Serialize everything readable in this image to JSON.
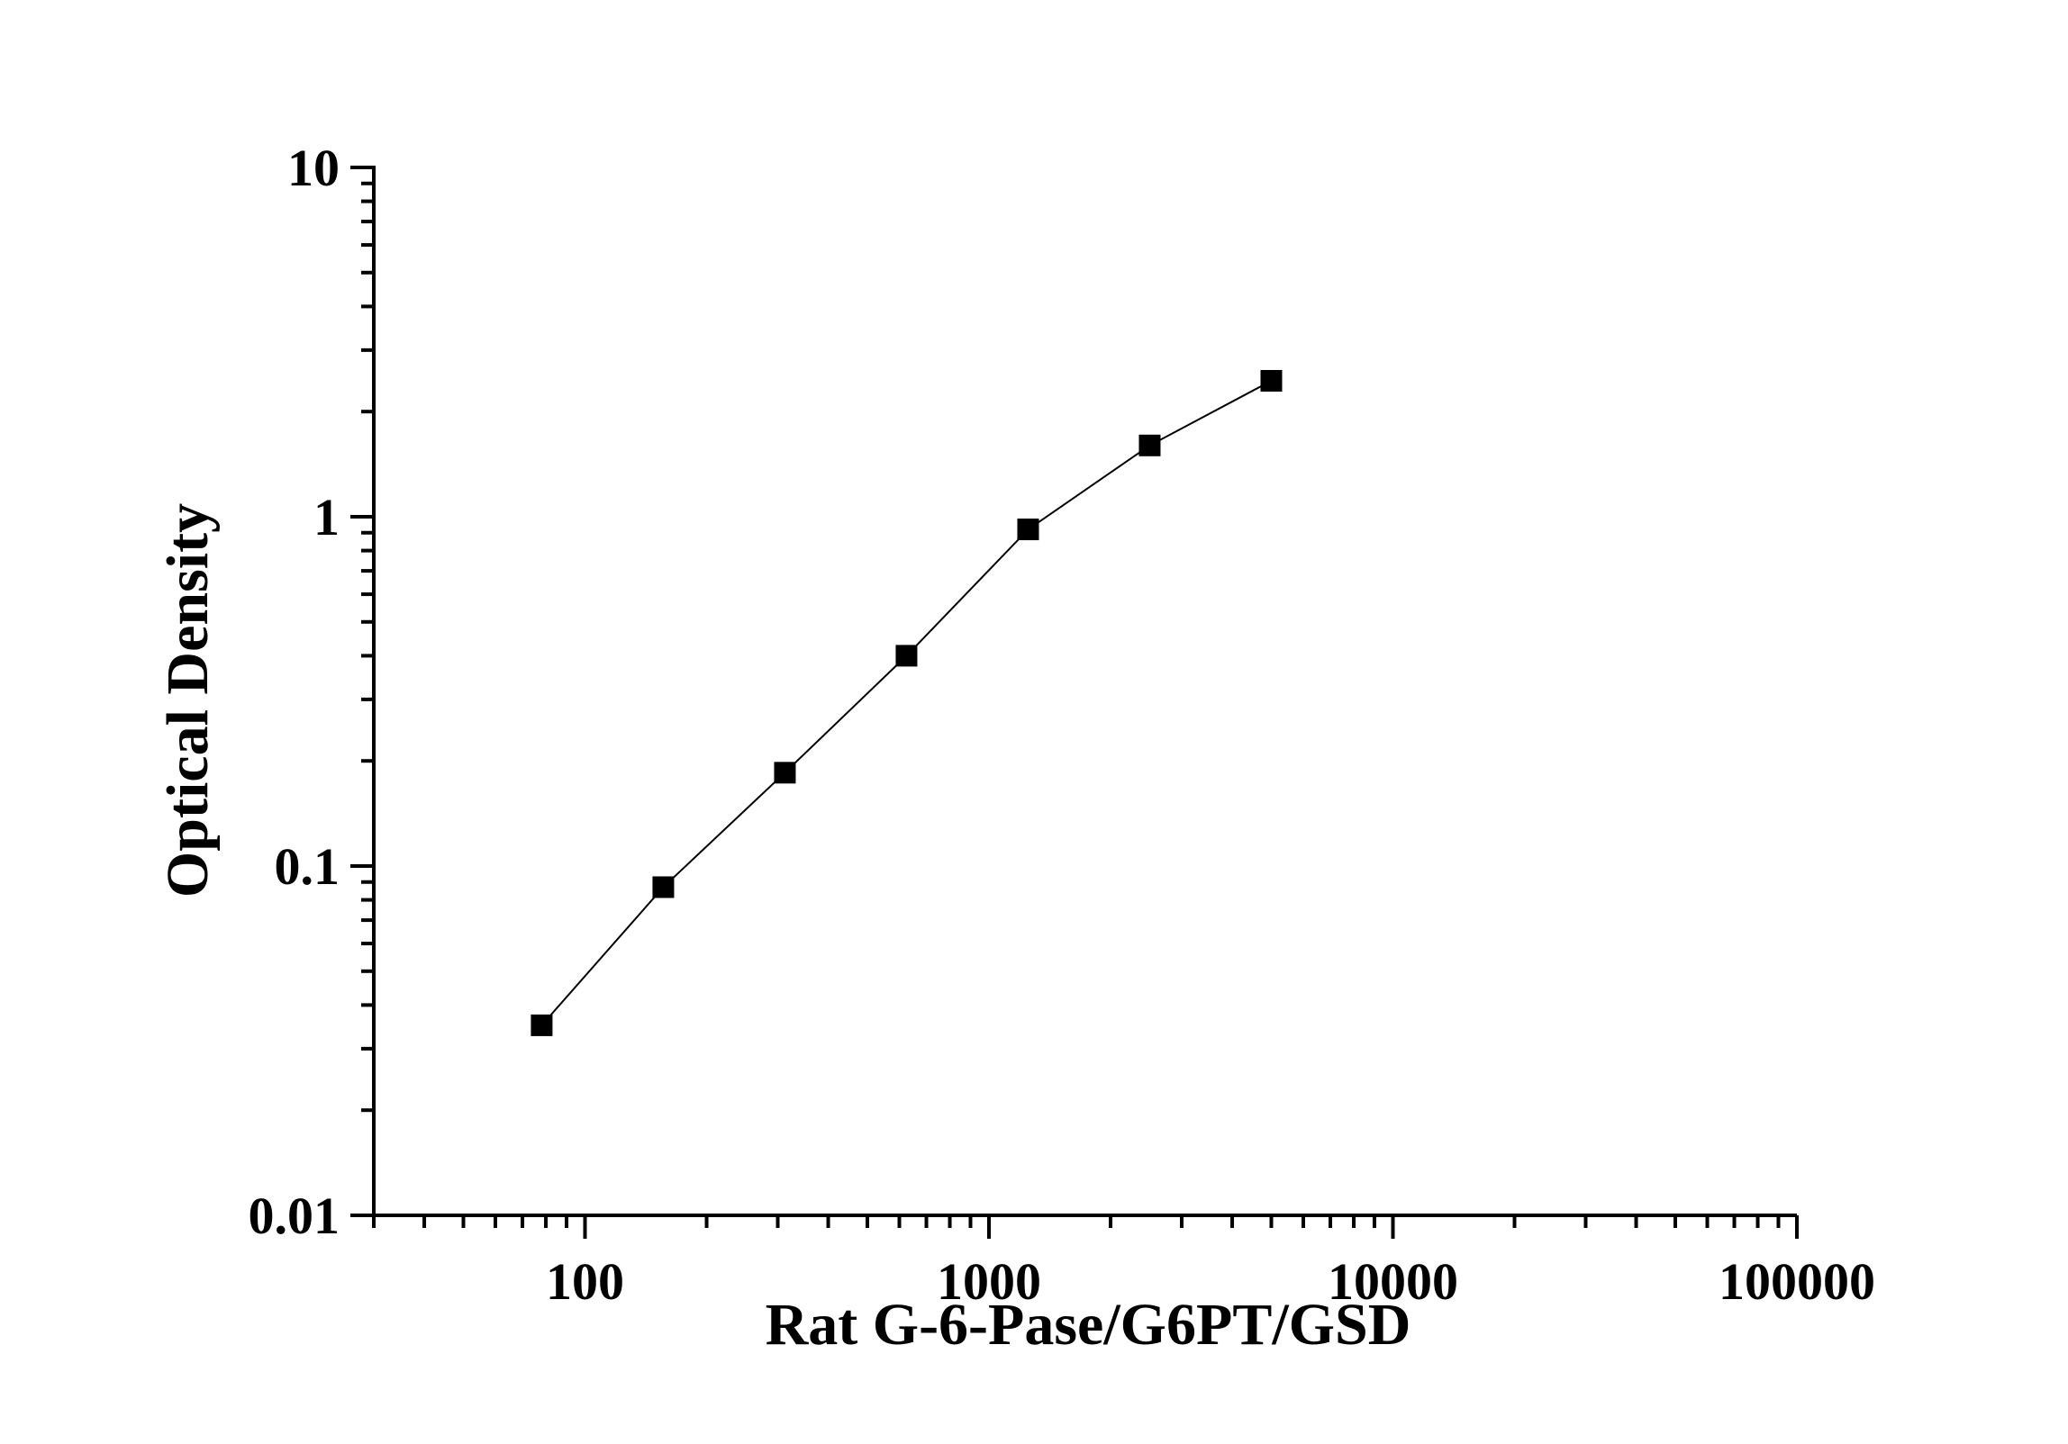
{
  "chart_data": {
    "type": "line",
    "title": "",
    "xlabel": "Rat G-6-Pase/G6PT/GSD",
    "ylabel": "Optical Density",
    "xscale": "log",
    "yscale": "log",
    "xlim": [
      30,
      100000
    ],
    "ylim": [
      0.01,
      10
    ],
    "grid": false,
    "legend": "none",
    "x_ticks": [
      "100",
      "1000",
      "10000",
      "100000"
    ],
    "y_ticks": [
      "0.01",
      "0.1",
      "1",
      "10"
    ],
    "series": [
      {
        "marker": "square",
        "color": "#000000",
        "x": [
          78.125,
          156.25,
          312.5,
          625,
          1250,
          2500,
          5000
        ],
        "y": [
          0.035,
          0.087,
          0.185,
          0.4,
          0.92,
          1.6,
          2.45
        ]
      }
    ]
  }
}
